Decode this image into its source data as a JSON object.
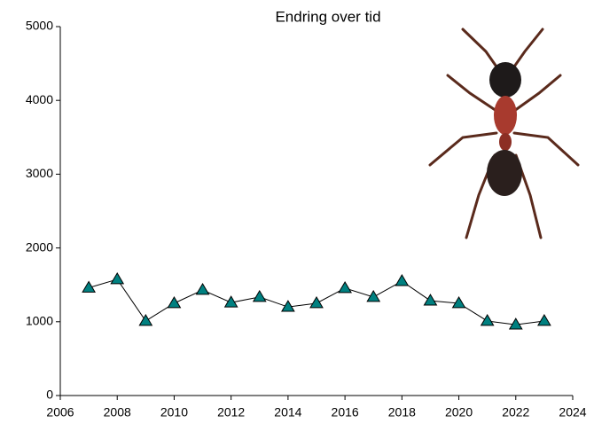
{
  "chart_data": {
    "type": "line",
    "title": "Endring over tid",
    "x": [
      2007,
      2008,
      2009,
      2010,
      2011,
      2012,
      2013,
      2014,
      2015,
      2016,
      2017,
      2018,
      2019,
      2020,
      2021,
      2022,
      2023
    ],
    "values": [
      1460,
      1575,
      1010,
      1250,
      1430,
      1260,
      1335,
      1200,
      1250,
      1455,
      1335,
      1550,
      1285,
      1250,
      1010,
      960,
      1010
    ],
    "color": "#008080",
    "xlim": [
      2006,
      2024
    ],
    "xticks": [
      2006,
      2008,
      2010,
      2012,
      2014,
      2016,
      2018,
      2020,
      2022,
      2024
    ],
    "ylim": [
      0,
      5000
    ],
    "yticks": [
      0,
      1000,
      2000,
      3000,
      4000,
      5000
    ],
    "grid": false
  }
}
